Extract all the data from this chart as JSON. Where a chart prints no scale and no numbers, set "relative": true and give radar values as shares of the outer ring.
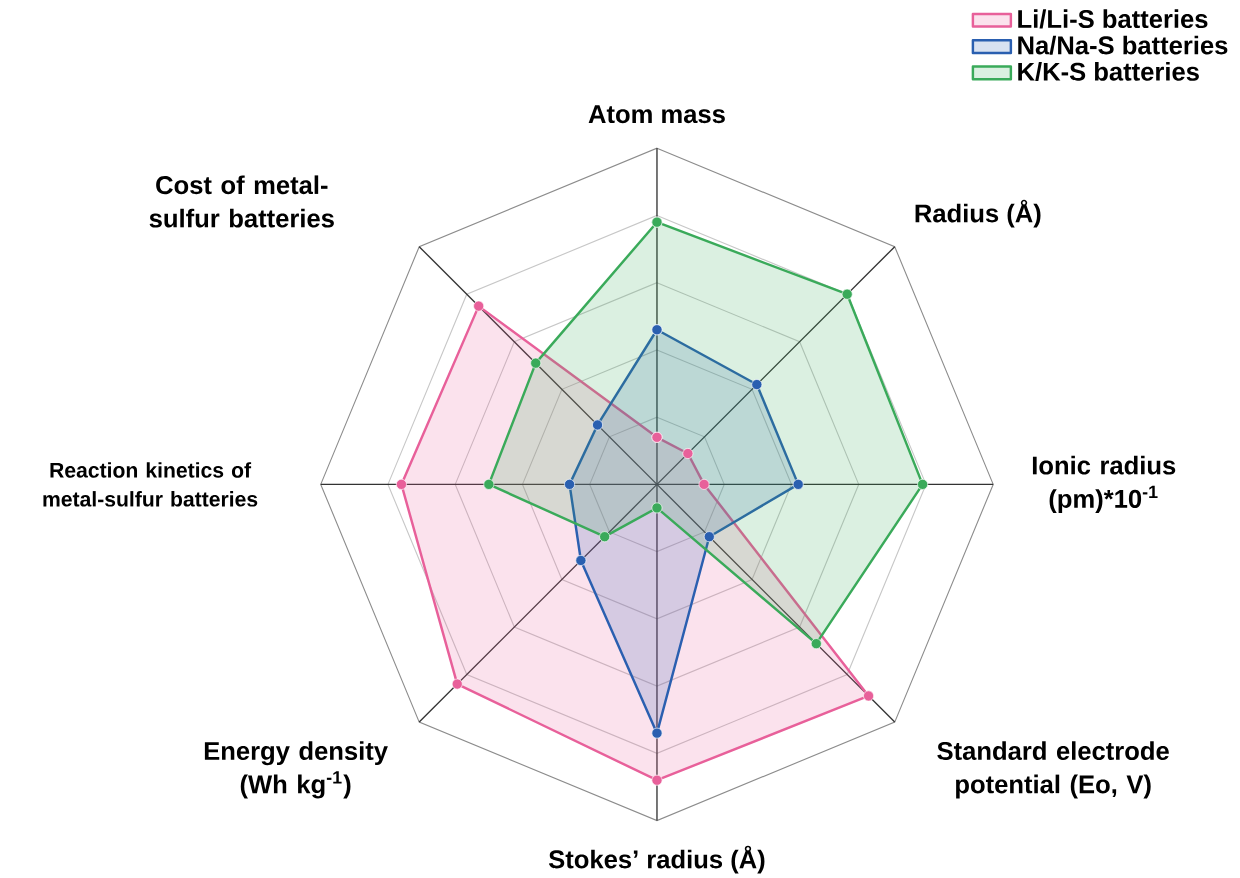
{
  "chart_data": {
    "type": "radar",
    "relative": true,
    "categories": [
      "Atom mass",
      "Radius (Å)",
      "Ionic radius (pm)*10$^{-1}$",
      "Standard electrode potential (Eo, V)",
      "Stokes’ radius (Å)",
      "Energy density (Wh kg$^{-1}$)",
      "Reaction kinetics of metal-sulfur batteries",
      "Cost of metal-sulfur batteries"
    ],
    "series": [
      {
        "name": "Li/Li-S batteries",
        "color": "#e8609a",
        "values": [
          0.14,
          0.13,
          0.14,
          0.89,
          0.88,
          0.84,
          0.76,
          0.75
        ]
      },
      {
        "name": "Na/Na-S batteries",
        "color": "#2a5fb0",
        "values": [
          0.46,
          0.42,
          0.42,
          0.22,
          0.74,
          0.32,
          0.26,
          0.25
        ]
      },
      {
        "name": "K/K-S batteries",
        "color": "#3aaa5a",
        "values": [
          0.78,
          0.8,
          0.79,
          0.67,
          0.07,
          0.22,
          0.5,
          0.51
        ]
      }
    ],
    "legend": "top right",
    "marker": "circle",
    "line_style": "solid"
  }
}
